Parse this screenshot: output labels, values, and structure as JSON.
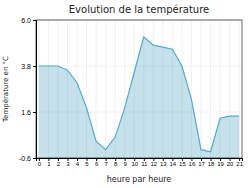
{
  "chart_data": {
    "type": "area",
    "title": "Evolution de la température",
    "xlabel": "heure par heure",
    "ylabel": "Température en °C",
    "color": "#55aac8",
    "grid": true,
    "x": [
      0,
      1,
      2,
      3,
      4,
      5,
      6,
      7,
      8,
      9,
      10,
      11,
      12,
      13,
      14,
      15,
      16,
      17,
      18,
      19,
      20,
      21
    ],
    "values": [
      3.8,
      3.8,
      3.8,
      3.6,
      3.0,
      1.8,
      0.2,
      -0.2,
      0.4,
      1.8,
      3.5,
      5.2,
      4.8,
      4.7,
      4.6,
      3.8,
      2.2,
      -0.2,
      -0.3,
      1.3,
      1.4,
      1.4
    ],
    "xlim": [
      -0.3,
      21.3
    ],
    "xticks": [
      0,
      1,
      2,
      3,
      4,
      5,
      6,
      7,
      8,
      9,
      10,
      11,
      12,
      13,
      14,
      15,
      16,
      17,
      18,
      19,
      20,
      21
    ],
    "ylim": [
      -0.6,
      6.0
    ],
    "yticks": [
      -0.6,
      1.6,
      3.8,
      {
        "value": 6.0,
        "label": "6.0"
      }
    ]
  }
}
